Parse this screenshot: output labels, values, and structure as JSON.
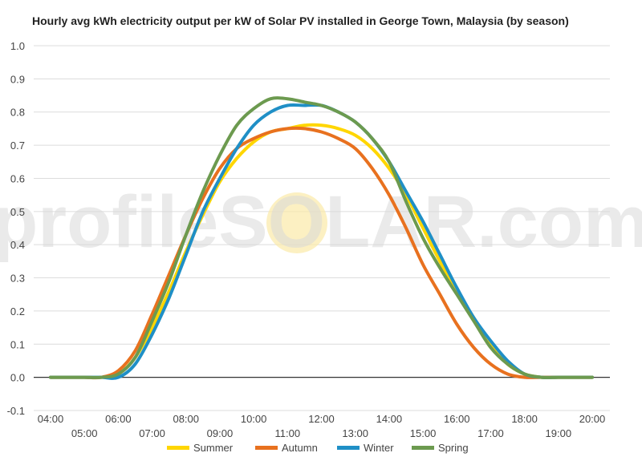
{
  "chart_data": {
    "type": "line",
    "title": "Hourly avg kWh electricity output per kW of Solar PV installed in George Town, Malaysia (by season)",
    "xlabel": "",
    "ylabel": "",
    "ylim": [
      -0.1,
      1.0
    ],
    "y_ticks": [
      "1.0",
      "0.9",
      "0.8",
      "0.7",
      "0.6",
      "0.5",
      "0.4",
      "0.3",
      "0.2",
      "0.1",
      "0.0",
      "-0.1"
    ],
    "x_ticks_upper": [
      "04:00",
      "06:00",
      "08:00",
      "10:00",
      "12:00",
      "14:00",
      "16:00",
      "18:00",
      "20:00"
    ],
    "x_ticks_lower": [
      "05:00",
      "07:00",
      "09:00",
      "11:00",
      "13:00",
      "15:00",
      "17:00",
      "19:00"
    ],
    "x": [
      "04:00",
      "04:30",
      "05:00",
      "05:30",
      "06:00",
      "06:30",
      "07:00",
      "07:30",
      "08:00",
      "08:30",
      "09:00",
      "09:30",
      "10:00",
      "10:30",
      "11:00",
      "11:30",
      "12:00",
      "12:30",
      "13:00",
      "13:30",
      "14:00",
      "14:30",
      "15:00",
      "15:30",
      "16:00",
      "16:30",
      "17:00",
      "17:30",
      "18:00",
      "18:30",
      "19:00",
      "19:30",
      "20:00"
    ],
    "series": [
      {
        "name": "Summer",
        "color": "#ffd600",
        "values": [
          0.0,
          0.0,
          0.0,
          0.0,
          0.01,
          0.06,
          0.15,
          0.26,
          0.38,
          0.49,
          0.59,
          0.66,
          0.71,
          0.74,
          0.75,
          0.76,
          0.76,
          0.75,
          0.73,
          0.69,
          0.63,
          0.55,
          0.45,
          0.35,
          0.26,
          0.18,
          0.1,
          0.04,
          0.01,
          0.0,
          0.0,
          0.0,
          0.0
        ]
      },
      {
        "name": "Autumn",
        "color": "#e8711f",
        "values": [
          0.0,
          0.0,
          0.0,
          0.0,
          0.02,
          0.08,
          0.19,
          0.31,
          0.43,
          0.54,
          0.63,
          0.69,
          0.72,
          0.74,
          0.75,
          0.75,
          0.74,
          0.72,
          0.69,
          0.63,
          0.55,
          0.45,
          0.34,
          0.25,
          0.16,
          0.09,
          0.04,
          0.01,
          0.0,
          0.0,
          0.0,
          0.0,
          0.0
        ]
      },
      {
        "name": "Winter",
        "color": "#1f8fc6",
        "values": [
          0.0,
          0.0,
          0.0,
          0.0,
          0.0,
          0.04,
          0.13,
          0.24,
          0.37,
          0.5,
          0.6,
          0.69,
          0.76,
          0.8,
          0.82,
          0.82,
          0.82,
          0.8,
          0.77,
          0.72,
          0.65,
          0.56,
          0.47,
          0.37,
          0.27,
          0.18,
          0.11,
          0.05,
          0.01,
          0.0,
          0.0,
          0.0,
          0.0
        ]
      },
      {
        "name": "Spring",
        "color": "#6c9a4f",
        "values": [
          0.0,
          0.0,
          0.0,
          0.0,
          0.01,
          0.06,
          0.17,
          0.29,
          0.43,
          0.56,
          0.67,
          0.76,
          0.81,
          0.84,
          0.84,
          0.83,
          0.82,
          0.8,
          0.77,
          0.72,
          0.65,
          0.53,
          0.42,
          0.33,
          0.25,
          0.17,
          0.09,
          0.04,
          0.01,
          0.0,
          0.0,
          0.0,
          0.0
        ]
      }
    ],
    "grid": true,
    "legend": "bottom"
  },
  "watermark": "profileSOLAR.com"
}
